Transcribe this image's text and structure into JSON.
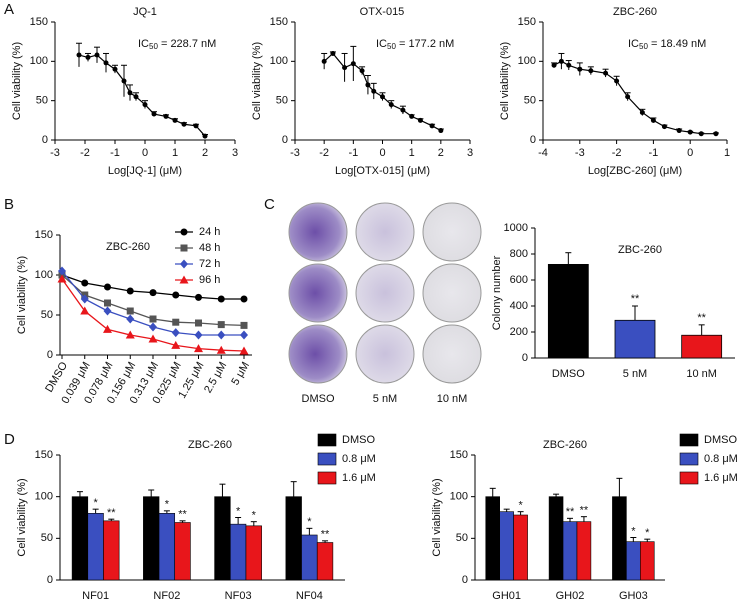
{
  "panel_labels": [
    "A",
    "B",
    "C",
    "D"
  ],
  "plate_labels": [
    "DMSO",
    "5 nM",
    "10 nM"
  ],
  "chart_data": [
    {
      "type": "scatter",
      "title": "JQ-1",
      "annotation": {
        "prefix": "IC",
        "sub": "50",
        "text": " = 228.7 nM"
      },
      "x": [
        -2.2,
        -1.9,
        -1.6,
        -1.3,
        -1,
        -0.7,
        -0.5,
        -0.3,
        0,
        0.3,
        0.7,
        1,
        1.3,
        1.7,
        2
      ],
      "values": [
        108,
        105,
        108,
        98,
        90,
        75,
        60,
        55,
        45,
        33,
        30,
        25,
        20,
        18,
        5
      ],
      "errors": [
        15,
        5,
        10,
        12,
        5,
        20,
        10,
        5,
        5,
        3,
        2,
        2,
        2,
        2,
        2
      ],
      "xlim": [
        -3,
        3
      ],
      "xticks": [
        -3,
        -2,
        -1,
        0,
        1,
        2,
        3
      ],
      "ylim": [
        0,
        150
      ],
      "yticks": [
        0,
        50,
        100,
        150
      ],
      "xlabel": "Log[JQ-1] (μM)",
      "ylabel": "Cell viability (%)",
      "color": "#000000"
    },
    {
      "type": "scatter",
      "title": "OTX-015",
      "annotation": {
        "prefix": "IC",
        "sub": "50",
        "text": " = 177.2 nM"
      },
      "x": [
        -2,
        -1.7,
        -1.3,
        -1,
        -0.7,
        -0.5,
        -0.3,
        0,
        0.3,
        0.7,
        1,
        1.3,
        1.7,
        2
      ],
      "values": [
        100,
        110,
        92,
        97,
        88,
        70,
        62,
        55,
        45,
        38,
        30,
        25,
        18,
        12
      ],
      "errors": [
        10,
        2,
        18,
        22,
        5,
        12,
        10,
        5,
        5,
        5,
        2,
        2,
        2,
        2
      ],
      "xlim": [
        -3,
        3
      ],
      "xticks": [
        -3,
        -2,
        -1,
        0,
        1,
        2,
        3
      ],
      "ylim": [
        0,
        150
      ],
      "yticks": [
        0,
        50,
        100,
        150
      ],
      "xlabel": "Log[OTX-015] (μM)",
      "ylabel": "Cell viability (%)",
      "color": "#000000"
    },
    {
      "type": "scatter",
      "title": "ZBC-260",
      "annotation": {
        "prefix": "IC",
        "sub": "50",
        "text": " = 18.49 nM"
      },
      "x": [
        -3.7,
        -3.5,
        -3.3,
        -3,
        -2.7,
        -2.3,
        -2,
        -1.7,
        -1.3,
        -1,
        -0.7,
        -0.3,
        0,
        0.3,
        0.7
      ],
      "values": [
        95,
        100,
        95,
        90,
        88,
        85,
        75,
        55,
        35,
        25,
        17,
        12,
        10,
        8,
        8
      ],
      "errors": [
        3,
        10,
        6,
        8,
        5,
        5,
        6,
        5,
        4,
        3,
        2,
        2,
        1,
        1,
        1
      ],
      "xlim": [
        -4,
        1
      ],
      "xticks": [
        -4,
        -3,
        -2,
        -1,
        0,
        1
      ],
      "ylim": [
        0,
        150
      ],
      "yticks": [
        0,
        50,
        100,
        150
      ],
      "xlabel": "Log[ZBC-260] (μM)",
      "ylabel": "Cell viability (%)",
      "color": "#000000"
    },
    {
      "type": "line",
      "title": "ZBC-260",
      "ylabel": "Cell viability (%)",
      "categories": [
        "DMSO",
        "0.039 μM",
        "0.078 μM",
        "0.156 μM",
        "0.313 μM",
        "0.625 μM",
        "1.25 μM",
        "2.5 μM",
        "5 μM"
      ],
      "series": [
        {
          "name": "24 h",
          "color": "#000000",
          "marker": "circle",
          "values": [
            100,
            90,
            85,
            80,
            78,
            75,
            72,
            70,
            70
          ]
        },
        {
          "name": "48 h",
          "color": "#555555",
          "marker": "square",
          "values": [
            100,
            75,
            65,
            55,
            45,
            41,
            40,
            38,
            37
          ]
        },
        {
          "name": "72 h",
          "color": "#3a4fc0",
          "marker": "diamond",
          "values": [
            105,
            70,
            55,
            45,
            35,
            28,
            25,
            25,
            25
          ]
        },
        {
          "name": "96 h",
          "color": "#e8161b",
          "marker": "triangle",
          "values": [
            95,
            55,
            32,
            25,
            20,
            12,
            8,
            6,
            5
          ]
        }
      ],
      "ylim": [
        0,
        150
      ],
      "yticks": [
        0,
        50,
        100,
        150
      ]
    },
    {
      "type": "bar",
      "title": "ZBC-260",
      "ylabel": "Colony number",
      "categories": [
        "DMSO",
        "5 nM",
        "10 nM"
      ],
      "values": [
        720,
        290,
        175
      ],
      "errors": [
        90,
        110,
        80
      ],
      "significance": [
        null,
        "**",
        "**"
      ],
      "colors": [
        "#000000",
        "#3a4fc0",
        "#e8161b"
      ],
      "ylim": [
        0,
        1000
      ],
      "yticks": [
        0,
        200,
        400,
        600,
        800,
        1000
      ]
    },
    {
      "type": "grouped_bar",
      "title": "ZBC-260",
      "ylabel": "Cell viability (%)",
      "categories": [
        "NF01",
        "NF02",
        "NF03",
        "NF04"
      ],
      "series": [
        {
          "name": "DMSO",
          "color": "#000000",
          "values": [
            100,
            100,
            100,
            100
          ],
          "errors": [
            6,
            8,
            15,
            18
          ]
        },
        {
          "name": "0.8 μM",
          "color": "#3a4fc0",
          "values": [
            80,
            80,
            67,
            54
          ],
          "errors": [
            5,
            3,
            8,
            8
          ],
          "significance": [
            "*",
            "*",
            "*",
            "*"
          ]
        },
        {
          "name": "1.6 μM",
          "color": "#e8161b",
          "values": [
            71,
            69,
            65,
            45
          ],
          "errors": [
            2,
            2,
            5,
            2
          ],
          "significance": [
            "**",
            "**",
            "*",
            "**"
          ]
        }
      ],
      "ylim": [
        0,
        150
      ],
      "yticks": [
        0,
        50,
        100,
        150
      ]
    },
    {
      "type": "grouped_bar",
      "title": "ZBC-260",
      "ylabel": "Cell viability (%)",
      "categories": [
        "GH01",
        "GH02",
        "GH03"
      ],
      "series": [
        {
          "name": "DMSO",
          "color": "#000000",
          "values": [
            100,
            100,
            100
          ],
          "errors": [
            10,
            3,
            22
          ]
        },
        {
          "name": "0.8 μM",
          "color": "#3a4fc0",
          "values": [
            82,
            70,
            46
          ],
          "errors": [
            3,
            4,
            5
          ],
          "significance": [
            null,
            "**",
            "*"
          ]
        },
        {
          "name": "1.6 μM",
          "color": "#e8161b",
          "values": [
            78,
            70,
            46
          ],
          "errors": [
            4,
            6,
            3
          ],
          "significance": [
            "*",
            "**",
            "*"
          ]
        }
      ],
      "ylim": [
        0,
        150
      ],
      "yticks": [
        0,
        50,
        100,
        150
      ]
    }
  ]
}
